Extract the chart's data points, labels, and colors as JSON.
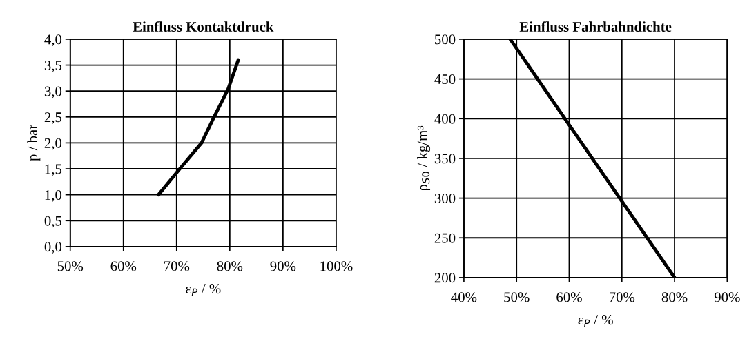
{
  "chart_data": [
    {
      "type": "line",
      "title": "Einfluss Kontaktdruck",
      "xlabel": "ε$_{P}$ / %",
      "ylabel": "p / bar",
      "series": [
        {
          "color": "#000000",
          "x": [
            66.6,
            70.2,
            74.7,
            77.05,
            79.7,
            81.6
          ],
          "values": [
            1.0,
            1.45,
            2.0,
            2.5,
            3.04,
            3.6
          ]
        }
      ],
      "xlim": [
        50,
        100
      ],
      "xticks": [
        {
          "value": 50,
          "label": "50%"
        },
        {
          "value": 60,
          "label": "60%"
        },
        {
          "value": 70,
          "label": "70%"
        },
        {
          "value": 80,
          "label": "80%"
        },
        {
          "value": 90,
          "label": "90%"
        },
        {
          "value": 100,
          "label": "100%"
        }
      ],
      "ylim": [
        0,
        4
      ],
      "yticks": [
        {
          "value": 0,
          "label": "0,0"
        },
        {
          "value": 0.5,
          "label": "0,5"
        },
        {
          "value": 1,
          "label": "1,0"
        },
        {
          "value": 1.5,
          "label": "1,5"
        },
        {
          "value": 2,
          "label": "2,0"
        },
        {
          "value": 2.5,
          "label": "2,5"
        },
        {
          "value": 3,
          "label": "3,0"
        },
        {
          "value": 3.5,
          "label": "3,5"
        },
        {
          "value": 4,
          "label": "4,0"
        }
      ],
      "grid": true,
      "legend": false,
      "marker": "none",
      "line_style": "solid"
    },
    {
      "type": "line",
      "title": "Einfluss Fahrbahndichte",
      "xlabel": "ε$_{P}$ / %",
      "ylabel": "ρ$_{S0}$ / kg/m³",
      "series": [
        {
          "color": "#000000",
          "x": [
            48.8,
            59.8,
            80.0
          ],
          "values": [
            500,
            394,
            200
          ]
        }
      ],
      "xlim": [
        40,
        90
      ],
      "xticks": [
        {
          "value": 40,
          "label": "40%"
        },
        {
          "value": 50,
          "label": "50%"
        },
        {
          "value": 60,
          "label": "60%"
        },
        {
          "value": 70,
          "label": "70%"
        },
        {
          "value": 80,
          "label": "80%"
        },
        {
          "value": 90,
          "label": "90%"
        }
      ],
      "ylim": [
        200,
        500
      ],
      "yticks": [
        200,
        250,
        300,
        350,
        400,
        450,
        500
      ],
      "grid": true,
      "legend": false,
      "marker": "none",
      "line_style": "solid"
    }
  ]
}
